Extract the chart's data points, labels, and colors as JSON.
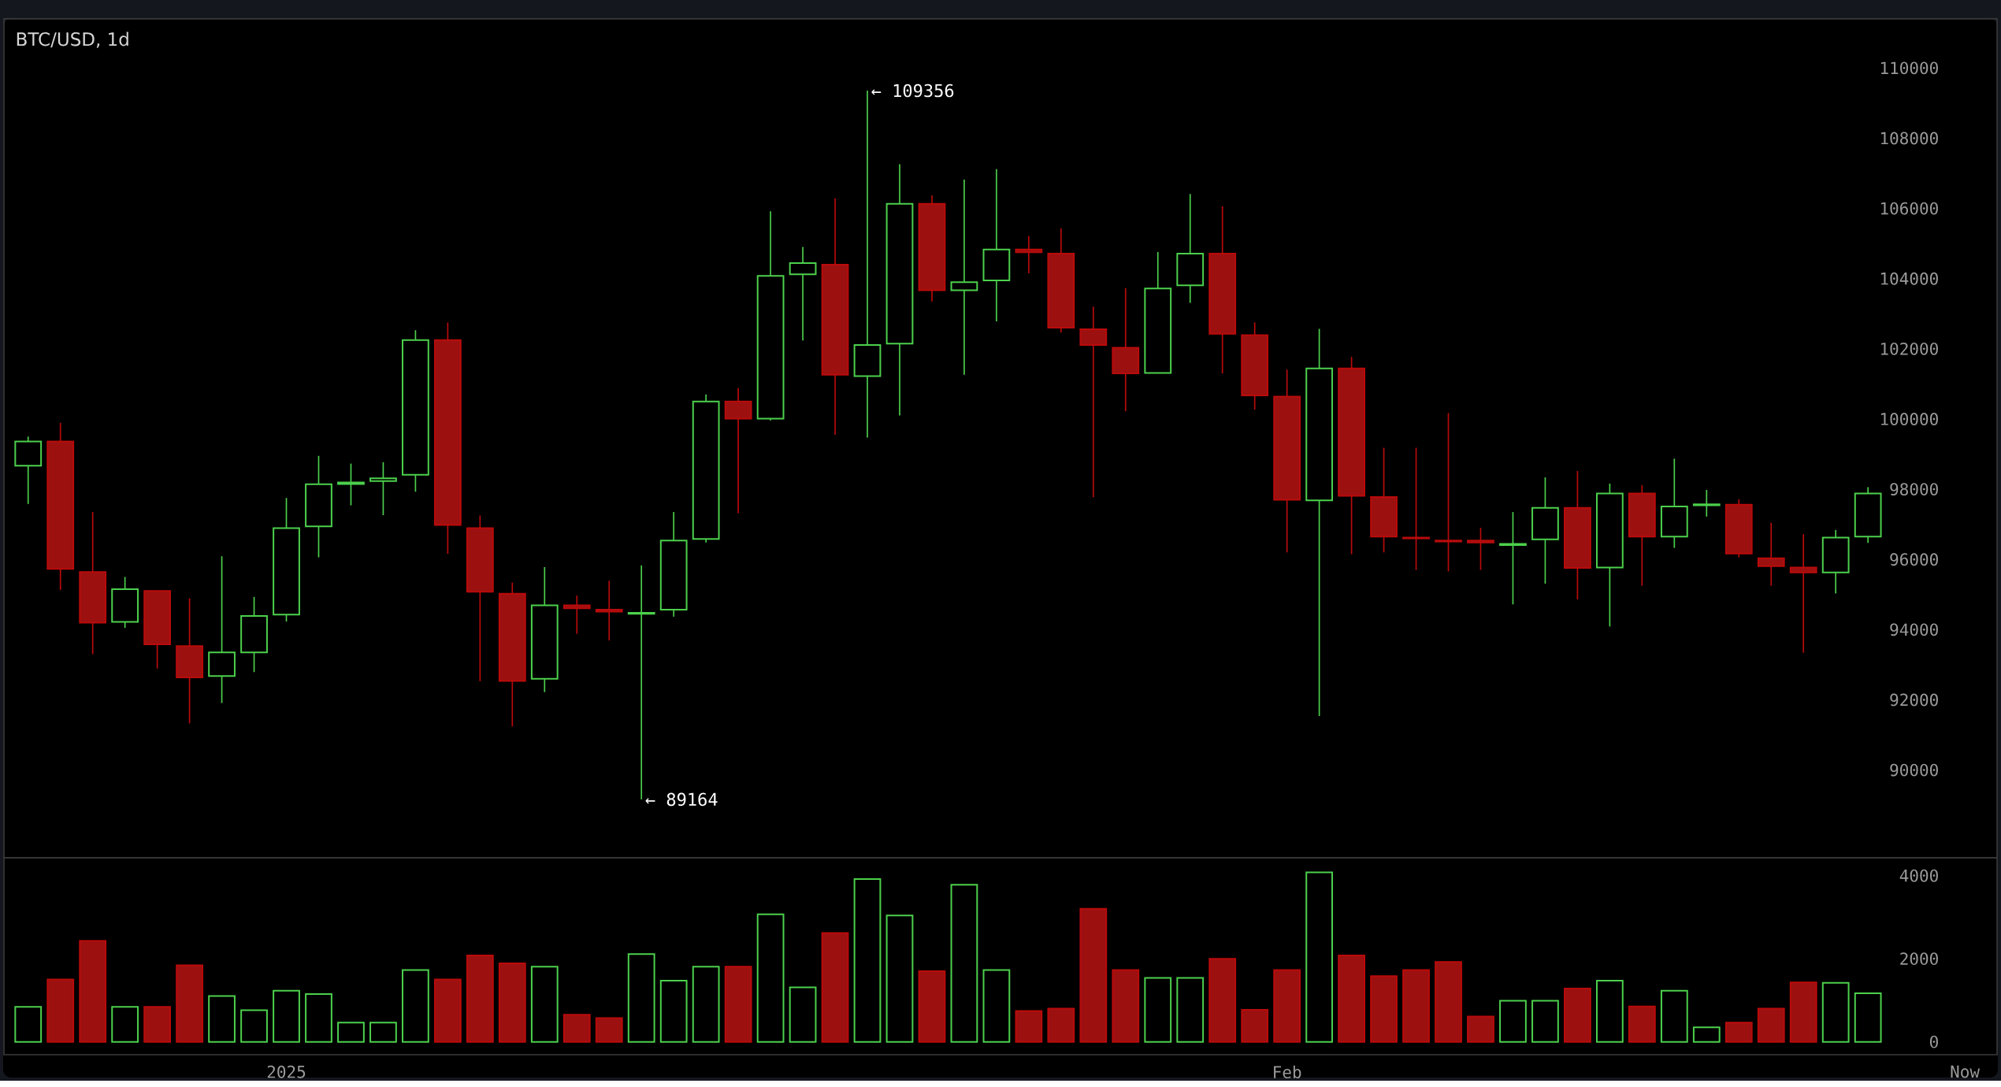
{
  "chart_data": [
    {
      "type": "candlestick",
      "title": "BTC/USD, 1d",
      "x": [
        "2024-12-24",
        "2024-12-25",
        "2024-12-26",
        "2024-12-27",
        "2024-12-28",
        "2024-12-29",
        "2024-12-30",
        "2024-12-31",
        "2025-01-01",
        "2025-01-02",
        "2025-01-03",
        "2025-01-04",
        "2025-01-05",
        "2025-01-06",
        "2025-01-07",
        "2025-01-08",
        "2025-01-09",
        "2025-01-10",
        "2025-01-11",
        "2025-01-12",
        "2025-01-13",
        "2025-01-14",
        "2025-01-15",
        "2025-01-16",
        "2025-01-17",
        "2025-01-18",
        "2025-01-19",
        "2025-01-20",
        "2025-01-21",
        "2025-01-22",
        "2025-01-23",
        "2025-01-24",
        "2025-01-25",
        "2025-01-26",
        "2025-01-27",
        "2025-01-28",
        "2025-01-29",
        "2025-01-30",
        "2025-01-31",
        "2025-02-01",
        "2025-02-02",
        "2025-02-03",
        "2025-02-04",
        "2025-02-05",
        "2025-02-06",
        "2025-02-07",
        "2025-02-08",
        "2025-02-09",
        "2025-02-10",
        "2025-02-11",
        "2025-02-12",
        "2025-02-13",
        "2025-02-14",
        "2025-02-15",
        "2025-02-16",
        "2025-02-17",
        "2025-02-18",
        "2025-02-19"
      ],
      "ohlc": [
        [
          98670,
          99500,
          97580,
          99360
        ],
        [
          99360,
          99890,
          95130,
          95730
        ],
        [
          95640,
          97350,
          93300,
          94200
        ],
        [
          94220,
          95500,
          94050,
          95150
        ],
        [
          95100,
          95100,
          92890,
          93580
        ],
        [
          93530,
          94890,
          91330,
          92640
        ],
        [
          92680,
          96090,
          91910,
          93350
        ],
        [
          93350,
          94930,
          92790,
          94390
        ],
        [
          94430,
          97750,
          94230,
          96890
        ],
        [
          96940,
          98950,
          96060,
          98140
        ],
        [
          98150,
          98730,
          97540,
          98190
        ],
        [
          98230,
          98770,
          97260,
          98310
        ],
        [
          98410,
          102530,
          97930,
          102250
        ],
        [
          102250,
          102750,
          96160,
          96980
        ],
        [
          96890,
          97250,
          92530,
          95080
        ],
        [
          95020,
          95340,
          91240,
          92540
        ],
        [
          92600,
          95780,
          92220,
          94690
        ],
        [
          94690,
          94970,
          93880,
          94610
        ],
        [
          94570,
          95390,
          93690,
          94510
        ],
        [
          94450,
          95830,
          89164,
          94480
        ],
        [
          94570,
          97350,
          94370,
          96540
        ],
        [
          96580,
          100700,
          96480,
          100500
        ],
        [
          100500,
          100880,
          97320,
          100010
        ],
        [
          100010,
          105920,
          99960,
          104080
        ],
        [
          104120,
          104900,
          102240,
          104440
        ],
        [
          104400,
          106290,
          99550,
          101260
        ],
        [
          101220,
          109356,
          99470,
          102110
        ],
        [
          102150,
          107260,
          100100,
          106130
        ],
        [
          106130,
          106370,
          103350,
          103670
        ],
        [
          103670,
          106820,
          101260,
          103900
        ],
        [
          103950,
          107120,
          102780,
          104830
        ],
        [
          104830,
          105210,
          104150,
          104750
        ],
        [
          104710,
          105430,
          102460,
          102600
        ],
        [
          102560,
          103200,
          97770,
          102110
        ],
        [
          102030,
          103730,
          100220,
          101300
        ],
        [
          101310,
          104760,
          101300,
          103720
        ],
        [
          103810,
          106410,
          103310,
          104710
        ],
        [
          104710,
          106060,
          101300,
          102430
        ],
        [
          102390,
          102750,
          100270,
          100670
        ],
        [
          100640,
          101410,
          96200,
          97700
        ],
        [
          97680,
          102570,
          91540,
          101440
        ],
        [
          101440,
          101770,
          96150,
          97810
        ],
        [
          97780,
          99180,
          96200,
          96650
        ],
        [
          96620,
          99180,
          95700,
          96600
        ],
        [
          96540,
          100170,
          95660,
          96510
        ],
        [
          96540,
          96900,
          95700,
          96480
        ],
        [
          96410,
          97350,
          94720,
          96440
        ],
        [
          96570,
          98340,
          95310,
          97470
        ],
        [
          97470,
          98520,
          94860,
          95760
        ],
        [
          95770,
          98160,
          94090,
          97880
        ],
        [
          97880,
          98120,
          95250,
          96650
        ],
        [
          96650,
          98870,
          96330,
          97510
        ],
        [
          97540,
          97980,
          97220,
          97570
        ],
        [
          97560,
          97710,
          96060,
          96170
        ],
        [
          96030,
          97040,
          95250,
          95810
        ],
        [
          95770,
          96720,
          93340,
          95630
        ],
        [
          95630,
          96840,
          95030,
          96620
        ],
        [
          96650,
          98060,
          96470,
          97880
        ]
      ],
      "colors": [
        "#4cd04c",
        "#9c1010",
        "#9c1010",
        "#4cd04c",
        "#9c1010",
        "#9c1010",
        "#4cd04c",
        "#4cd04c",
        "#4cd04c",
        "#4cd04c",
        "#4cd04c",
        "#4cd04c",
        "#4cd04c",
        "#9c1010",
        "#9c1010",
        "#9c1010",
        "#4cd04c",
        "#9c1010",
        "#9c1010",
        "#4cd04c",
        "#4cd04c",
        "#4cd04c",
        "#9c1010",
        "#4cd04c",
        "#4cd04c",
        "#9c1010",
        "#4cd04c",
        "#4cd04c",
        "#9c1010",
        "#4cd04c",
        "#4cd04c",
        "#9c1010",
        "#9c1010",
        "#9c1010",
        "#9c1010",
        "#4cd04c",
        "#4cd04c",
        "#9c1010",
        "#9c1010",
        "#9c1010",
        "#4cd04c",
        "#9c1010",
        "#9c1010",
        "#9c1010",
        "#9c1010",
        "#9c1010",
        "#4cd04c",
        "#4cd04c",
        "#9c1010",
        "#4cd04c",
        "#9c1010",
        "#4cd04c",
        "#4cd04c",
        "#9c1010",
        "#9c1010",
        "#9c1010",
        "#4cd04c",
        "#4cd04c"
      ],
      "xlim": [
        "2024-12-23T06:00",
        "2025-02-23"
      ],
      "ylim": [
        87500,
        111400
      ],
      "yticks": [
        90000,
        92000,
        94000,
        96000,
        98000,
        100000,
        102000,
        104000,
        106000,
        108000,
        110000
      ],
      "tick_labels": "y",
      "annotations": [
        "← 109356",
        "← 89164"
      ]
    },
    {
      "type": "bar",
      "x": [
        "2024-12-24",
        "2024-12-25",
        "2024-12-26",
        "2024-12-27",
        "2024-12-28",
        "2024-12-29",
        "2024-12-30",
        "2024-12-31",
        "2025-01-01",
        "2025-01-02",
        "2025-01-03",
        "2025-01-04",
        "2025-01-05",
        "2025-01-06",
        "2025-01-07",
        "2025-01-08",
        "2025-01-09",
        "2025-01-10",
        "2025-01-11",
        "2025-01-12",
        "2025-01-13",
        "2025-01-14",
        "2025-01-15",
        "2025-01-16",
        "2025-01-17",
        "2025-01-18",
        "2025-01-19",
        "2025-01-20",
        "2025-01-21",
        "2025-01-22",
        "2025-01-23",
        "2025-01-24",
        "2025-01-25",
        "2025-01-26",
        "2025-01-27",
        "2025-01-28",
        "2025-01-29",
        "2025-01-30",
        "2025-01-31",
        "2025-02-01",
        "2025-02-02",
        "2025-02-03",
        "2025-02-04",
        "2025-02-05",
        "2025-02-06",
        "2025-02-07",
        "2025-02-08",
        "2025-02-09",
        "2025-02-10",
        "2025-02-11",
        "2025-02-12",
        "2025-02-13",
        "2025-02-14",
        "2025-02-15",
        "2025-02-16",
        "2025-02-17",
        "2025-02-18",
        "2025-02-19"
      ],
      "values": [
        840,
        1500,
        2430,
        840,
        840,
        1840,
        1100,
        760,
        1230,
        1150,
        460,
        460,
        1730,
        1500,
        2080,
        1890,
        1810,
        650,
        570,
        2110,
        1470,
        1810,
        1810,
        3070,
        1310,
        2620,
        3920,
        3040,
        1700,
        3780,
        1730,
        740,
        800,
        3200,
        1730,
        1540,
        1540,
        2000,
        770,
        1730,
        4080,
        2080,
        1580,
        1730,
        1920,
        610,
        990,
        990,
        1280,
        1470,
        850,
        1230,
        350,
        460,
        800,
        1430,
        1420,
        1170
      ],
      "colors": [
        "#4cd04c",
        "#9c1010",
        "#9c1010",
        "#4cd04c",
        "#9c1010",
        "#9c1010",
        "#4cd04c",
        "#4cd04c",
        "#4cd04c",
        "#4cd04c",
        "#4cd04c",
        "#4cd04c",
        "#4cd04c",
        "#9c1010",
        "#9c1010",
        "#9c1010",
        "#4cd04c",
        "#9c1010",
        "#9c1010",
        "#4cd04c",
        "#4cd04c",
        "#4cd04c",
        "#9c1010",
        "#4cd04c",
        "#4cd04c",
        "#9c1010",
        "#4cd04c",
        "#4cd04c",
        "#9c1010",
        "#4cd04c",
        "#4cd04c",
        "#9c1010",
        "#9c1010",
        "#9c1010",
        "#9c1010",
        "#4cd04c",
        "#4cd04c",
        "#9c1010",
        "#9c1010",
        "#9c1010",
        "#4cd04c",
        "#9c1010",
        "#9c1010",
        "#9c1010",
        "#9c1010",
        "#9c1010",
        "#4cd04c",
        "#4cd04c",
        "#9c1010",
        "#4cd04c",
        "#9c1010",
        "#4cd04c",
        "#4cd04c",
        "#9c1010",
        "#9c1010",
        "#9c1010",
        "#4cd04c",
        "#4cd04c"
      ],
      "xlim": [
        "2024-12-23T06:00",
        "2025-02-23"
      ],
      "xticks": [
        {
          "value": "2025-01-01",
          "label": "2025"
        },
        {
          "value": "2025-02-01",
          "label": "Feb"
        },
        {
          "value": "2025-02-22",
          "label": "Now"
        }
      ],
      "ylim": [
        -310,
        4430
      ],
      "yticks": [
        0,
        2000,
        4000
      ]
    }
  ]
}
